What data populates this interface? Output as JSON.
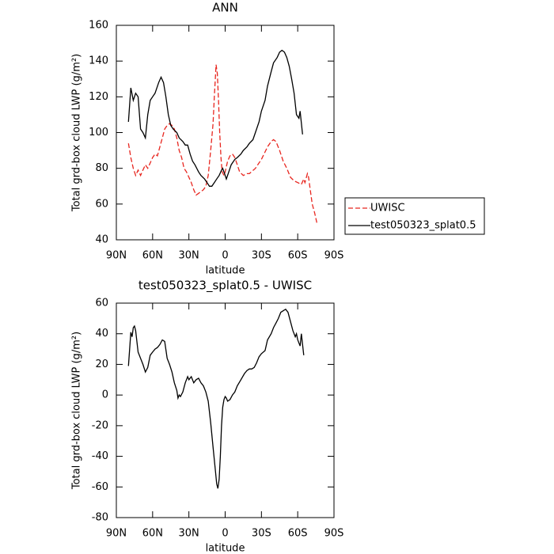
{
  "chart_data": [
    {
      "type": "line",
      "title": "ANN",
      "x_label": "latitude",
      "y_label": "Total grd-box cloud LWP (g/m²)",
      "xlim": [
        90,
        -90
      ],
      "xticks": [
        {
          "value": 90,
          "label": "90N"
        },
        {
          "value": 60,
          "label": "60N"
        },
        {
          "value": 30,
          "label": "30N"
        },
        0,
        {
          "value": -30,
          "label": "30S"
        },
        {
          "value": -60,
          "label": "60S"
        },
        {
          "value": -90,
          "label": "90S"
        }
      ],
      "ylim": [
        40,
        160
      ],
      "yticks": [
        40,
        60,
        80,
        100,
        120,
        140,
        160
      ],
      "legend": "outside-right",
      "series": [
        {
          "name": "UWISC",
          "color": "#e8261f",
          "dash": true,
          "x": [
            80,
            78,
            76,
            74,
            72,
            70,
            68,
            66,
            64,
            62,
            60,
            58,
            56,
            54,
            52,
            50,
            48,
            46,
            44,
            42,
            40,
            38,
            36,
            34,
            32,
            30,
            28,
            26,
            24,
            22,
            20,
            18,
            16,
            14,
            12,
            10,
            9,
            8,
            7.5,
            6.5,
            5.5,
            4.5,
            3.5,
            2.5,
            1,
            0,
            -2,
            -4,
            -6,
            -8,
            -10,
            -12,
            -15,
            -18,
            -20,
            -25,
            -30,
            -35,
            -38,
            -40,
            -42,
            -45,
            -48,
            -51,
            -54,
            -57,
            -60,
            -63,
            -65,
            -66,
            -68,
            -69,
            -70,
            -72,
            -74,
            -76
          ],
          "values": [
            94,
            86,
            80,
            76,
            79,
            76,
            79,
            82,
            80,
            83,
            86,
            88,
            87,
            92,
            97,
            102,
            104,
            105,
            104,
            102,
            97,
            90,
            86,
            80,
            78,
            75,
            72,
            68,
            65,
            66,
            67,
            68,
            70,
            76,
            90,
            105,
            120,
            132,
            138,
            133,
            118,
            100,
            86,
            78,
            76,
            78,
            84,
            87,
            88,
            86,
            82,
            78,
            76,
            77,
            77,
            80,
            85,
            92,
            95,
            96,
            95,
            90,
            84,
            80,
            75,
            73,
            72,
            71,
            74,
            72,
            77,
            75,
            70,
            60,
            55,
            49
          ]
        },
        {
          "name": "test050323_splat0.5",
          "color": "#000000",
          "dash": false,
          "x": [
            80,
            78,
            76,
            74,
            72,
            70,
            68,
            66,
            64,
            62,
            60,
            58,
            55,
            53,
            51,
            49,
            47,
            45,
            43,
            40,
            38,
            35,
            33,
            31,
            29,
            27,
            25,
            22,
            20,
            17,
            15,
            13,
            11,
            9,
            7,
            5,
            3,
            2,
            0,
            -1,
            -3,
            -5,
            -8,
            -10,
            -13,
            -15,
            -18,
            -20,
            -23,
            -25,
            -28,
            -30,
            -33,
            -35,
            -38,
            -40,
            -43,
            -45,
            -47,
            -49,
            -51,
            -53,
            -55,
            -57,
            -59,
            -61,
            -62,
            -64
          ],
          "values": [
            106,
            125,
            118,
            122,
            120,
            102,
            100,
            97,
            110,
            118,
            120,
            122,
            128,
            131,
            128,
            120,
            110,
            104,
            102,
            100,
            97,
            95,
            93,
            93,
            88,
            84,
            82,
            78,
            76,
            74,
            72,
            70,
            70,
            72,
            74,
            76,
            79,
            80,
            76,
            74,
            78,
            82,
            85,
            86,
            88,
            90,
            92,
            94,
            96,
            100,
            106,
            112,
            118,
            126,
            134,
            139,
            142,
            145,
            146,
            145,
            142,
            137,
            130,
            122,
            110,
            108,
            112,
            99
          ]
        }
      ]
    },
    {
      "type": "line",
      "title": "test050323_splat0.5 - UWISC",
      "x_label": "latitude",
      "y_label": "Total grd-box cloud LWP (g/m²)",
      "xlim": [
        90,
        -90
      ],
      "xticks": [
        {
          "value": 90,
          "label": "90N"
        },
        {
          "value": 60,
          "label": "60N"
        },
        {
          "value": 30,
          "label": "30N"
        },
        0,
        {
          "value": -30,
          "label": "30S"
        },
        {
          "value": -60,
          "label": "60S"
        },
        {
          "value": -90,
          "label": "90S"
        }
      ],
      "ylim": [
        -80,
        60
      ],
      "yticks": [
        -80,
        -60,
        -40,
        -20,
        0,
        20,
        40,
        60
      ],
      "series": [
        {
          "color": "#000000",
          "dash": false,
          "x": [
            80,
            78,
            77,
            76,
            75,
            74,
            72,
            70,
            68,
            66,
            64,
            62,
            60,
            58,
            56,
            54,
            52,
            50,
            48,
            46,
            44,
            42,
            40,
            39,
            38,
            37,
            35,
            33,
            31,
            30,
            28,
            26,
            24,
            22,
            20,
            18,
            16,
            14,
            12,
            10,
            8,
            7,
            6,
            5,
            4,
            3,
            2,
            1,
            0,
            -1,
            -2,
            -4,
            -6,
            -8,
            -10,
            -13,
            -16,
            -18,
            -20,
            -22,
            -24,
            -26,
            -28,
            -30,
            -33,
            -35,
            -38,
            -40,
            -42,
            -44,
            -46,
            -48,
            -50,
            -52,
            -54,
            -56,
            -58,
            -59,
            -60,
            -62,
            -63,
            -65
          ],
          "values": [
            19,
            41,
            38,
            44,
            45,
            42,
            28,
            24,
            20,
            15,
            18,
            26,
            28,
            30,
            31,
            33,
            36,
            35,
            24,
            20,
            15,
            8,
            3,
            -2,
            0,
            -1,
            2,
            8,
            12,
            10,
            12,
            8,
            10,
            11,
            8,
            6,
            2,
            -4,
            -18,
            -34,
            -50,
            -58,
            -61,
            -55,
            -40,
            -20,
            -8,
            -3,
            -1,
            -2,
            -4,
            -3,
            0,
            2,
            6,
            10,
            14,
            16,
            17,
            17,
            18,
            21,
            25,
            27,
            29,
            36,
            40,
            44,
            47,
            50,
            54,
            55,
            56,
            54,
            48,
            42,
            38,
            40,
            36,
            32,
            40,
            26
          ]
        }
      ]
    }
  ]
}
